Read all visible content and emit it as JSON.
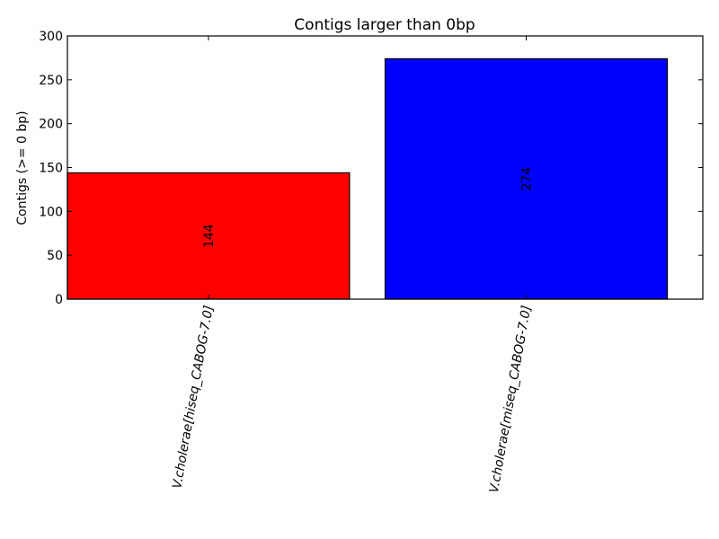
{
  "chart_data": {
    "type": "bar",
    "title": "Contigs larger than 0bp",
    "xlabel": "",
    "ylabel": "Contigs (>= 0 bp)",
    "categories": [
      "V.cholerae[hiseq_CABOG-7.0]",
      "V.cholerae[miseq_CABOG-7.0]"
    ],
    "values": [
      144,
      274
    ],
    "value_labels": [
      "144",
      "274"
    ],
    "colors": [
      "#ff0000",
      "#0000ff"
    ],
    "ylim": [
      0,
      300
    ],
    "yticks": [
      0,
      50,
      100,
      150,
      200,
      250,
      300
    ],
    "ytick_labels": [
      "0",
      "50",
      "100",
      "150",
      "200",
      "250",
      "300"
    ],
    "grid": false,
    "legend": "none"
  }
}
